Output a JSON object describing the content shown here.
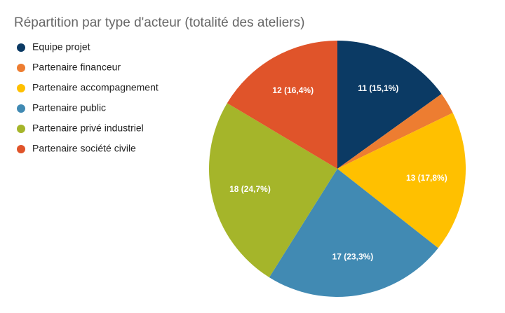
{
  "chart_data": {
    "type": "pie",
    "title": "Répartition par type d'acteur (totalité des ateliers)",
    "categories": [
      "Equipe projet",
      "Partenaire financeur",
      "Partenaire accompagnement",
      "Partenaire public",
      "Partenaire privé industriel",
      "Partenaire société civile"
    ],
    "values": [
      11,
      2,
      13,
      17,
      18,
      12
    ],
    "value_labels": [
      "11 (15,1%)",
      null,
      "13 (17,8%)",
      "17 (23,3%)",
      "18 (24,7%)",
      "12 (16,4%)"
    ],
    "colors": [
      "#0b3a64",
      "#ed7d31",
      "#ffc000",
      "#418ab3",
      "#a5b52a",
      "#e0542a"
    ],
    "legend": "left"
  }
}
